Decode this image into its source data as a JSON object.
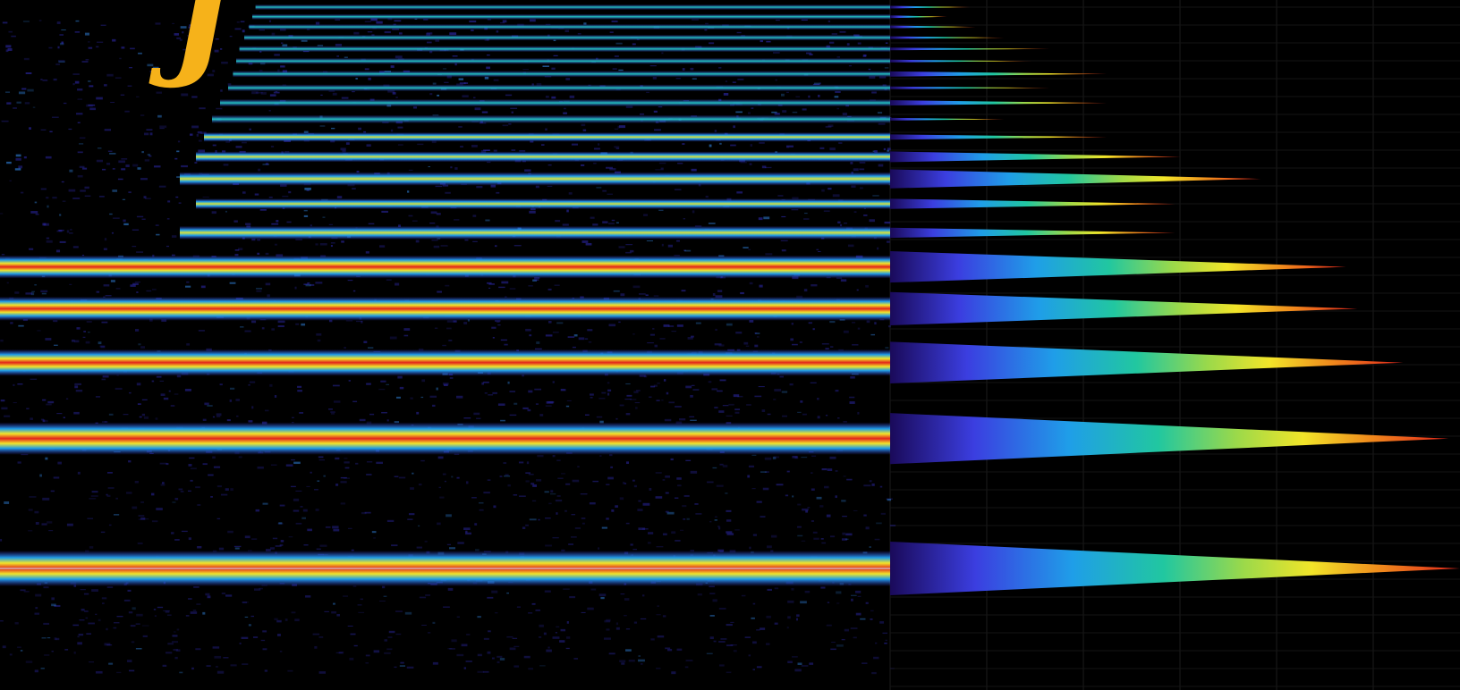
{
  "figure": {
    "corner_glyph": "J",
    "glyph_color": "#f6b21a",
    "background": "#000000"
  },
  "chart_data": {
    "type": "heatmap",
    "subtype": "spectrogram-with-average-spectrum",
    "title": "",
    "xlabel": "",
    "ylabel": "",
    "colormap": [
      "#1a0a5a",
      "#3b3ee0",
      "#1f9ee8",
      "#21c7a0",
      "#9bd94a",
      "#f2e529",
      "#f08a1c",
      "#e3241b"
    ],
    "grid": true,
    "harmonic_count": 20,
    "harmonics": [
      {
        "n": 1,
        "intensity": 1.0,
        "spectrum_level": 1.0
      },
      {
        "n": 2,
        "intensity": 0.95,
        "spectrum_level": 0.98
      },
      {
        "n": 3,
        "intensity": 0.85,
        "spectrum_level": 0.9
      },
      {
        "n": 4,
        "intensity": 0.8,
        "spectrum_level": 0.82
      },
      {
        "n": 5,
        "intensity": 0.78,
        "spectrum_level": 0.8
      },
      {
        "n": 6,
        "intensity": 0.55,
        "spectrum_level": 0.5
      },
      {
        "n": 7,
        "intensity": 0.45,
        "spectrum_level": 0.5
      },
      {
        "n": 8,
        "intensity": 0.55,
        "spectrum_level": 0.65
      },
      {
        "n": 9,
        "intensity": 0.45,
        "spectrum_level": 0.51
      },
      {
        "n": 10,
        "intensity": 0.4,
        "spectrum_level": 0.38
      },
      {
        "n": 11,
        "intensity": 0.35,
        "spectrum_level": 0.2
      },
      {
        "n": 12,
        "intensity": 0.3,
        "spectrum_level": 0.38
      },
      {
        "n": 13,
        "intensity": 0.25,
        "spectrum_level": 0.28
      },
      {
        "n": 14,
        "intensity": 0.22,
        "spectrum_level": 0.38
      },
      {
        "n": 15,
        "intensity": 0.2,
        "spectrum_level": 0.25
      },
      {
        "n": 16,
        "intensity": 0.18,
        "spectrum_level": 0.28
      },
      {
        "n": 17,
        "intensity": 0.15,
        "spectrum_level": 0.2
      },
      {
        "n": 18,
        "intensity": 0.12,
        "spectrum_level": 0.15
      },
      {
        "n": 19,
        "intensity": 0.1,
        "spectrum_level": 0.1
      },
      {
        "n": 20,
        "intensity": 0.08,
        "spectrum_level": 0.14
      }
    ]
  }
}
